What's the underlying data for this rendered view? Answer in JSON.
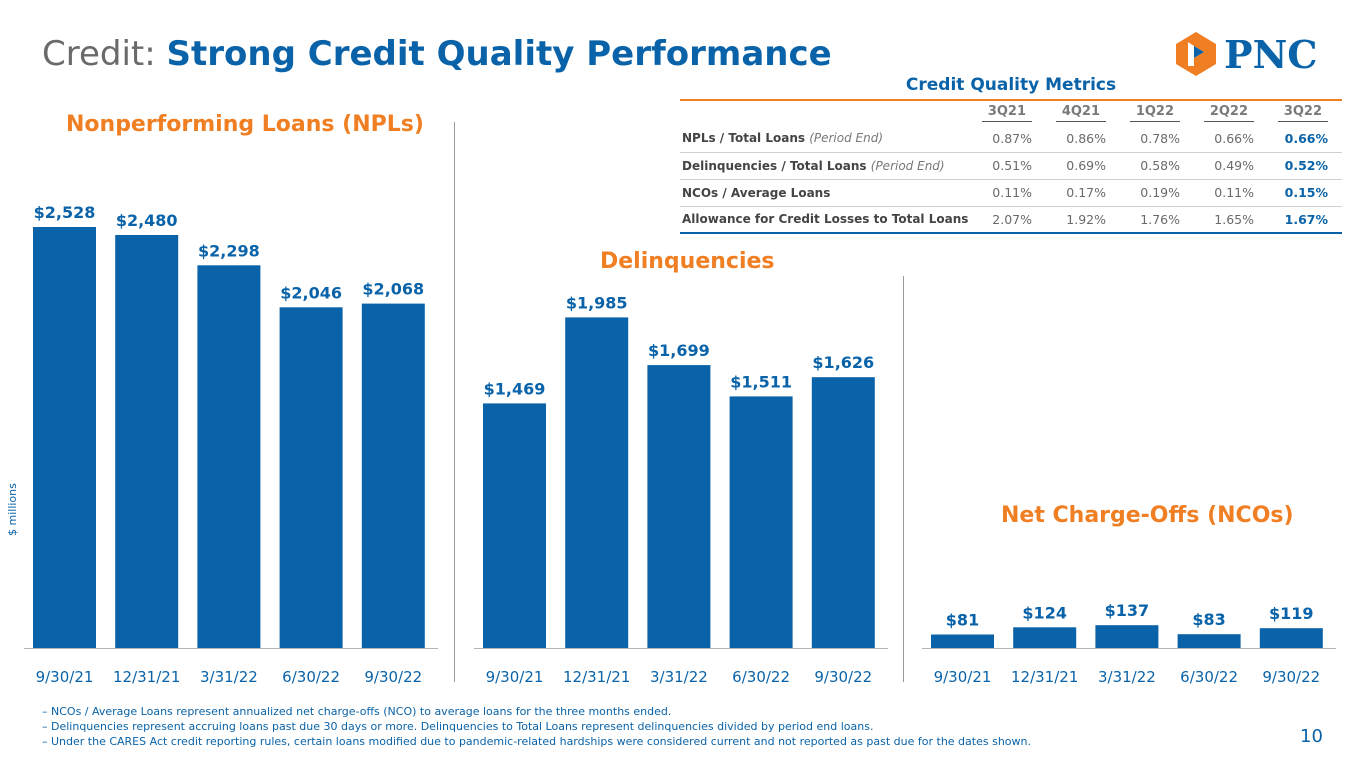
{
  "title": {
    "prefix": "Credit: ",
    "main": "Strong Credit Quality Performance"
  },
  "logo": {
    "text": "PNC",
    "colors": {
      "orange": "#f07f23",
      "blue": "#0a63a8"
    }
  },
  "colors": {
    "bar": "#0a63a8",
    "accent": "#f07f23",
    "text_blue": "#0a63a8"
  },
  "y_axis_label": "$ millions",
  "chart_data": [
    {
      "type": "bar",
      "title": "Nonperforming Loans (NPLs)",
      "categories": [
        "9/30/21",
        "12/31/21",
        "3/31/22",
        "6/30/22",
        "9/30/22"
      ],
      "values": [
        2528,
        2480,
        2298,
        2046,
        2068
      ],
      "data_labels": [
        "$2,528",
        "$2,480",
        "$2,298",
        "$2,046",
        "$2,068"
      ],
      "ylabel": "$ millions"
    },
    {
      "type": "bar",
      "title": "Delinquencies",
      "categories": [
        "9/30/21",
        "12/31/21",
        "3/31/22",
        "6/30/22",
        "9/30/22"
      ],
      "values": [
        1469,
        1985,
        1699,
        1511,
        1626
      ],
      "data_labels": [
        "$1,469",
        "$1,985",
        "$1,699",
        "$1,511",
        "$1,626"
      ]
    },
    {
      "type": "bar",
      "title": "Net Charge-Offs (NCOs)",
      "categories": [
        "9/30/21",
        "12/31/21",
        "3/31/22",
        "6/30/22",
        "9/30/22"
      ],
      "values": [
        81,
        124,
        137,
        83,
        119
      ],
      "data_labels": [
        "$81",
        "$124",
        "$137",
        "$83",
        "$119"
      ]
    },
    {
      "type": "table",
      "title": "Credit Quality Metrics",
      "columns": [
        "3Q21",
        "4Q21",
        "1Q22",
        "2Q22",
        "3Q22"
      ],
      "rows": [
        {
          "label": "NPLs / Total Loans",
          "qualifier": "(Period End)",
          "values": [
            "0.87%",
            "0.86%",
            "0.78%",
            "0.66%",
            "0.66%"
          ]
        },
        {
          "label": "Delinquencies / Total Loans",
          "qualifier": "(Period End)",
          "values": [
            "0.51%",
            "0.69%",
            "0.58%",
            "0.49%",
            "0.52%"
          ]
        },
        {
          "label": "NCOs / Average Loans",
          "qualifier": "",
          "values": [
            "0.11%",
            "0.17%",
            "0.19%",
            "0.11%",
            "0.15%"
          ]
        },
        {
          "label": "Allowance for Credit Losses to Total Loans",
          "qualifier": "",
          "values": [
            "2.07%",
            "1.92%",
            "1.76%",
            "1.65%",
            "1.67%"
          ]
        }
      ]
    }
  ],
  "footnotes": [
    "–  NCOs / Average Loans represent annualized net charge-offs (NCO) to average loans for the three months ended.",
    "–  Delinquencies represent accruing loans past due 30 days or more. Delinquencies to Total Loans represent delinquencies divided by period end loans.",
    "–  Under the CARES Act credit reporting rules, certain loans modified due to pandemic-related hardships were considered current and not reported as past due for the dates shown."
  ],
  "page_number": "10"
}
